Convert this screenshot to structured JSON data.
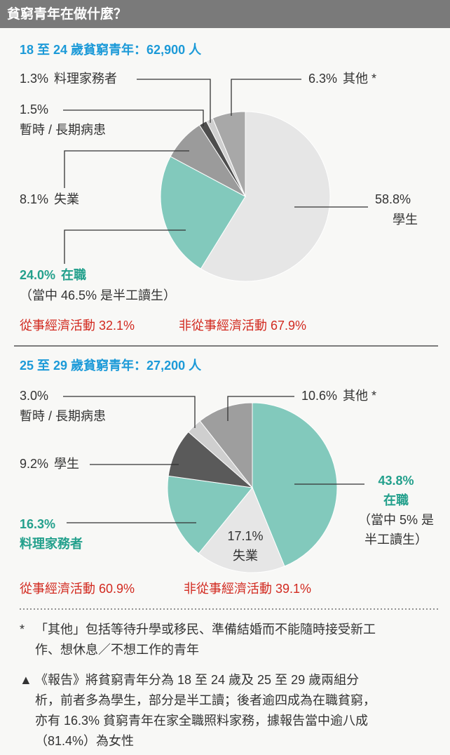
{
  "header": {
    "title": "貧窮青年在做什麼？"
  },
  "chart_data": [
    {
      "type": "pie",
      "subtitle": "18 至 24 歲貧窮青年：62,900 人",
      "categories": [
        "學生",
        "在職",
        "失業",
        "暫時 / 長期病患",
        "料理家務者",
        "其他 *"
      ],
      "values": [
        58.8,
        24.0,
        8.1,
        1.5,
        1.3,
        6.3
      ],
      "value_labels": [
        "58.8%",
        "24.0%",
        "8.1%",
        "1.5%",
        "1.3%",
        "6.3%"
      ],
      "colors": [
        "#e6e6e6",
        "#82c9bc",
        "#9b9b9b",
        "#4d4d4d",
        "#cfcfcf",
        "#a8a8a8"
      ],
      "notes": [
        "（當中 46.5% 是半工讀生）"
      ],
      "activity": [
        "從事經濟活動 32.1%",
        "非從事經濟活動 67.9%"
      ]
    },
    {
      "type": "pie",
      "subtitle": "25 至 29 歲貧窮青年：27,200 人",
      "categories": [
        "在職",
        "失業",
        "料理家務者",
        "學生",
        "暫時 / 長期病患",
        "其他 *"
      ],
      "values": [
        43.8,
        17.1,
        16.3,
        9.2,
        3.0,
        10.6
      ],
      "value_labels": [
        "43.8%",
        "17.1%",
        "16.3%",
        "9.2%",
        "3.0%",
        "10.6%"
      ],
      "colors": [
        "#82c9bc",
        "#e6e6e6",
        "#82c9bc",
        "#5a5a5a",
        "#cfcfcf",
        "#9e9e9e"
      ],
      "notes": [
        "（當中 5% 是",
        "半工讀生）"
      ],
      "activity": [
        "從事經濟活動 60.9%",
        "非從事經濟活動 39.1%"
      ]
    }
  ],
  "footnotes": [
    [
      "*",
      "「其他」包括等待升學或移民、準備結婚而不能隨時接受新工",
      "作、想休息／不想工作的青年"
    ],
    [
      "▲",
      "《報告》將貧窮青年分為 18 至 24 歲及 25 至 29 歲兩組分",
      "析，前者多為學生，部分是半工讀；後者逾四成為在職貧窮，",
      "亦有 16.3% 貧窮青年在家全職照料家務，據報告當中逾八成",
      "（81.4%）為女性"
    ]
  ]
}
